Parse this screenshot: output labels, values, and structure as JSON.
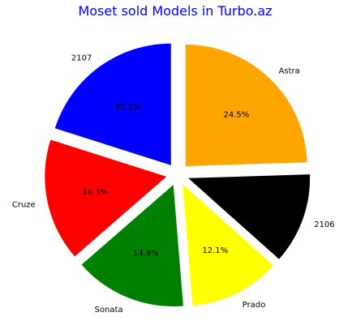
{
  "chart_data": {
    "type": "pie",
    "title": "Moset sold Models in Turbo.az",
    "categories": [
      "Astra",
      "2106",
      "Prado",
      "Sonata",
      "Cruze",
      "2107"
    ],
    "values": [
      24.5,
      12.1,
      12.1,
      14.9,
      16.3,
      20.1
    ],
    "percent_labels": [
      "24.5%",
      "",
      "12.1%",
      "14.9%",
      "16.3%",
      "20.1%"
    ],
    "colors": [
      "#ffa500",
      "#000000",
      "#ffff00",
      "#008000",
      "#ff0000",
      "#0000ff"
    ],
    "start_angle_deg": 90,
    "direction": "clockwise",
    "exploded": true
  }
}
